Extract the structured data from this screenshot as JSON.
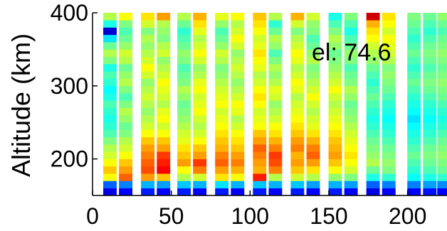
{
  "chart_data": {
    "type": "heatmap",
    "title": "",
    "xlabel": "",
    "ylabel": "Altitude (km)",
    "annotation": "el: 74.6",
    "xlim": [
      0,
      225
    ],
    "ylim": [
      150,
      400
    ],
    "x_ticks": [
      0,
      50,
      100,
      150,
      200
    ],
    "y_ticks": [
      200,
      300,
      400
    ],
    "colormap": "jet",
    "altitude_bins": [
      155,
      165,
      175,
      185,
      195,
      205,
      215,
      225,
      235,
      245,
      255,
      265,
      275,
      285,
      295,
      305,
      315,
      325,
      335,
      345,
      355,
      365,
      375,
      385,
      395
    ],
    "data_columns": [
      {
        "x": 11,
        "values": [
          0.1,
          0.22,
          0.62,
          0.68,
          0.62,
          0.58,
          0.55,
          0.5,
          0.45,
          0.42,
          0.4,
          0.42,
          0.45,
          0.4,
          0.38,
          0.42,
          0.45,
          0.4,
          0.5,
          0.55,
          0.48,
          0.35,
          0.08,
          0.4,
          0.55
        ]
      },
      {
        "x": 21,
        "values": [
          0.12,
          0.25,
          0.78,
          0.72,
          0.68,
          0.62,
          0.58,
          0.55,
          0.5,
          0.48,
          0.52,
          0.55,
          0.5,
          0.45,
          0.5,
          0.55,
          0.52,
          0.48,
          0.55,
          0.58,
          0.52,
          0.48,
          0.45,
          0.5,
          0.62
        ]
      },
      {
        "x": 35,
        "values": [
          0.15,
          0.3,
          0.72,
          0.8,
          0.78,
          0.75,
          0.72,
          0.68,
          0.62,
          0.58,
          0.55,
          0.52,
          0.55,
          0.58,
          0.55,
          0.52,
          0.58,
          0.62,
          0.58,
          0.55,
          0.52,
          0.55,
          0.5,
          0.58,
          0.65
        ]
      },
      {
        "x": 45,
        "values": [
          0.12,
          0.28,
          0.68,
          0.88,
          0.85,
          0.82,
          0.72,
          0.68,
          0.62,
          0.58,
          0.62,
          0.6,
          0.55,
          0.58,
          0.6,
          0.62,
          0.58,
          0.55,
          0.52,
          0.58,
          0.55,
          0.5,
          0.52,
          0.55,
          0.72
        ]
      },
      {
        "x": 58,
        "values": [
          0.15,
          0.32,
          0.55,
          0.62,
          0.72,
          0.68,
          0.65,
          0.6,
          0.58,
          0.55,
          0.52,
          0.5,
          0.48,
          0.52,
          0.55,
          0.5,
          0.48,
          0.45,
          0.5,
          0.52,
          0.48,
          0.45,
          0.42,
          0.48,
          0.55
        ]
      },
      {
        "x": 68,
        "values": [
          0.12,
          0.3,
          0.58,
          0.75,
          0.82,
          0.72,
          0.68,
          0.62,
          0.58,
          0.55,
          0.58,
          0.62,
          0.6,
          0.58,
          0.62,
          0.6,
          0.55,
          0.52,
          0.58,
          0.62,
          0.58,
          0.55,
          0.6,
          0.65,
          0.7
        ]
      },
      {
        "x": 82,
        "values": [
          0.15,
          0.35,
          0.65,
          0.72,
          0.78,
          0.75,
          0.7,
          0.68,
          0.65,
          0.62,
          0.6,
          0.58,
          0.62,
          0.6,
          0.58,
          0.55,
          0.52,
          0.5,
          0.55,
          0.58,
          0.52,
          0.48,
          0.45,
          0.52,
          0.6
        ]
      },
      {
        "x": 92,
        "values": [
          0.12,
          0.3,
          0.62,
          0.7,
          0.75,
          0.72,
          0.68,
          0.65,
          0.62,
          0.58,
          0.55,
          0.6,
          0.62,
          0.58,
          0.55,
          0.52,
          0.55,
          0.58,
          0.55,
          0.52,
          0.58,
          0.62,
          0.58,
          0.55,
          0.62
        ]
      },
      {
        "x": 106,
        "values": [
          0.15,
          0.32,
          0.85,
          0.7,
          0.72,
          0.75,
          0.78,
          0.72,
          0.68,
          0.62,
          0.6,
          0.58,
          0.62,
          0.65,
          0.62,
          0.58,
          0.55,
          0.6,
          0.62,
          0.65,
          0.6,
          0.58,
          0.62,
          0.65,
          0.68
        ]
      },
      {
        "x": 116,
        "values": [
          0.12,
          0.3,
          0.55,
          0.75,
          0.8,
          0.82,
          0.75,
          0.7,
          0.65,
          0.62,
          0.58,
          0.55,
          0.52,
          0.58,
          0.6,
          0.55,
          0.52,
          0.55,
          0.5,
          0.45,
          0.52,
          0.55,
          0.48,
          0.42,
          0.55
        ]
      },
      {
        "x": 130,
        "values": [
          0.15,
          0.32,
          0.58,
          0.68,
          0.72,
          0.7,
          0.75,
          0.72,
          0.68,
          0.65,
          0.62,
          0.6,
          0.58,
          0.55,
          0.6,
          0.62,
          0.58,
          0.55,
          0.6,
          0.62,
          0.58,
          0.55,
          0.5,
          0.58,
          0.7
        ]
      },
      {
        "x": 140,
        "values": [
          0.12,
          0.28,
          0.55,
          0.65,
          0.72,
          0.78,
          0.75,
          0.7,
          0.65,
          0.6,
          0.58,
          0.55,
          0.58,
          0.62,
          0.58,
          0.55,
          0.52,
          0.5,
          0.55,
          0.52,
          0.48,
          0.45,
          0.5,
          0.52,
          0.58
        ]
      },
      {
        "x": 154,
        "values": [
          0.15,
          0.3,
          0.52,
          0.62,
          0.68,
          0.72,
          0.7,
          0.68,
          0.65,
          0.62,
          0.6,
          0.58,
          0.55,
          0.58,
          0.62,
          0.58,
          0.55,
          0.52,
          0.5,
          0.48,
          0.52,
          0.55,
          0.5,
          0.45,
          0.4
        ]
      },
      {
        "x": 164,
        "values": [
          0.12,
          0.28,
          0.5,
          0.58,
          0.62,
          0.65,
          0.62,
          0.6,
          0.58,
          0.55,
          0.52,
          0.5,
          0.48,
          0.52,
          0.55,
          0.5,
          0.48,
          0.45,
          0.5,
          0.52,
          0.48,
          0.45,
          0.4,
          0.45,
          0.5
        ]
      },
      {
        "x": 178,
        "values": [
          0.1,
          0.22,
          0.4,
          0.48,
          0.55,
          0.52,
          0.5,
          0.48,
          0.45,
          0.42,
          0.4,
          0.42,
          0.45,
          0.48,
          0.45,
          0.42,
          0.45,
          0.48,
          0.52,
          0.55,
          0.58,
          0.62,
          0.65,
          0.7,
          0.92
        ]
      },
      {
        "x": 188,
        "values": [
          0.12,
          0.25,
          0.42,
          0.5,
          0.52,
          0.5,
          0.48,
          0.45,
          0.42,
          0.4,
          0.38,
          0.4,
          0.42,
          0.45,
          0.48,
          0.5,
          0.52,
          0.5,
          0.55,
          0.58,
          0.6,
          0.62,
          0.58,
          0.62,
          0.65
        ]
      },
      {
        "x": 204,
        "values": [
          0.12,
          0.25,
          0.38,
          0.42,
          0.45,
          0.48,
          0.45,
          0.42,
          0.4,
          0.38,
          0.35,
          0.38,
          0.4,
          0.42,
          0.45,
          0.48,
          0.45,
          0.42,
          0.45,
          0.48,
          0.45,
          0.42,
          0.45,
          0.48,
          0.5
        ]
      },
      {
        "x": 214,
        "values": [
          0.14,
          0.28,
          0.4,
          0.45,
          0.48,
          0.5,
          0.48,
          0.45,
          0.42,
          0.4,
          0.38,
          0.4,
          0.42,
          0.45,
          0.48,
          0.5,
          0.48,
          0.45,
          0.48,
          0.5,
          0.48,
          0.45,
          0.42,
          0.45,
          0.48
        ]
      },
      {
        "x": 223,
        "values": [
          0.12,
          0.26,
          0.42,
          0.48,
          0.5,
          0.52,
          0.5,
          0.48,
          0.45,
          0.42,
          0.4,
          0.42,
          0.45,
          0.48,
          0.5,
          0.52,
          0.5,
          0.48,
          0.5,
          0.52,
          0.5,
          0.48,
          0.45,
          0.48,
          0.52
        ]
      }
    ]
  }
}
